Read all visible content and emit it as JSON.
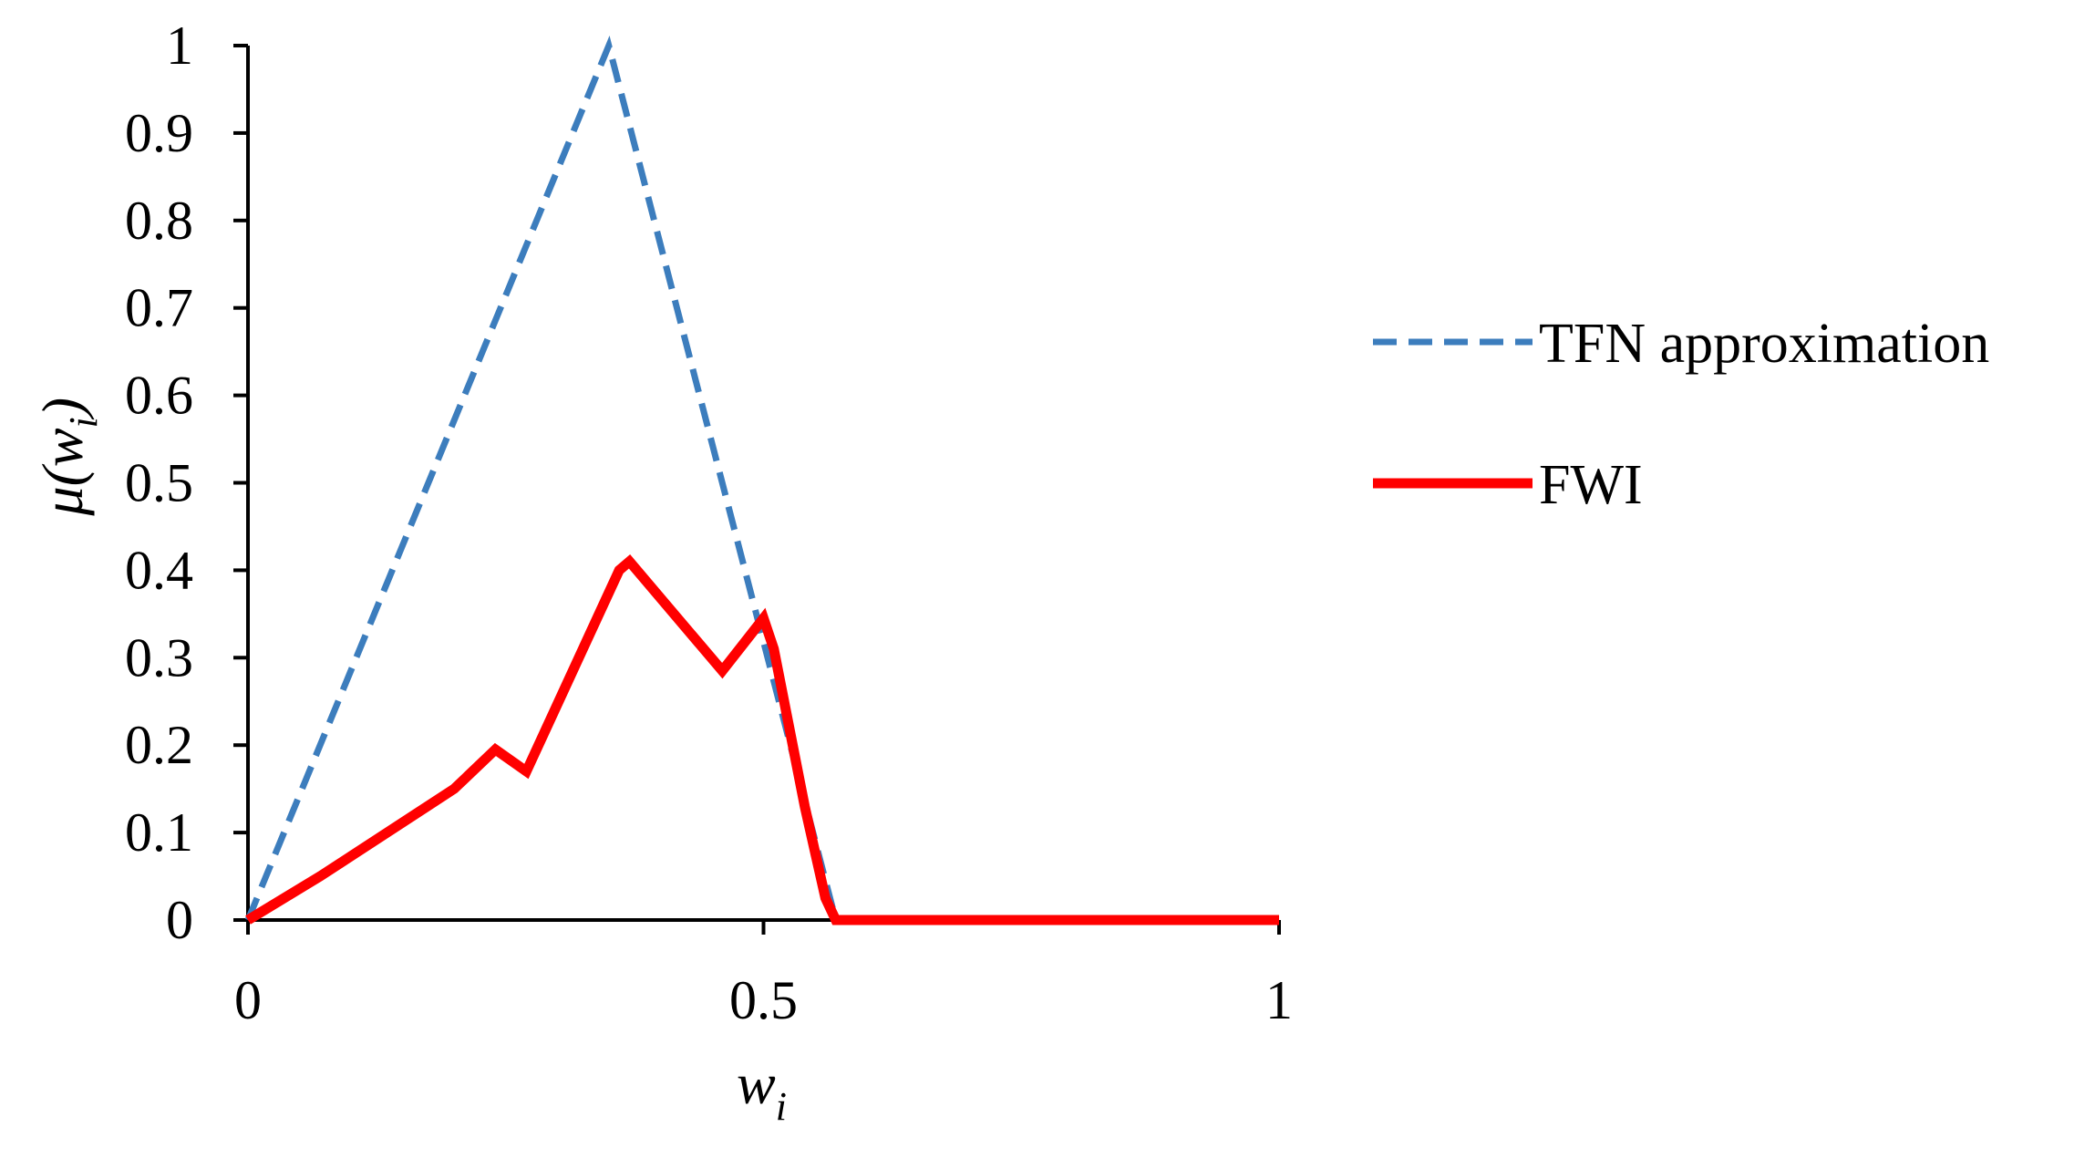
{
  "chart_data": {
    "type": "line",
    "title": "",
    "xlabel": {
      "main": "w",
      "sub": "i"
    },
    "ylabel": {
      "prefix": "μ(",
      "main": "w",
      "sub": "i",
      "suffix": ")"
    },
    "xlim": [
      0,
      1
    ],
    "ylim": [
      0,
      1
    ],
    "x_ticks": [
      0,
      0.5,
      1
    ],
    "x_tick_labels": [
      "0",
      "0.5",
      "1"
    ],
    "y_ticks": [
      0,
      0.1,
      0.2,
      0.3,
      0.4,
      0.5,
      0.6,
      0.7,
      0.8,
      0.9,
      1
    ],
    "y_tick_labels": [
      "0",
      "0.1",
      "0.2",
      "0.3",
      "0.4",
      "0.5",
      "0.6",
      "0.7",
      "0.8",
      "0.9",
      "1"
    ],
    "grid": false,
    "legend_position": "right",
    "series": [
      {
        "name": "TFN approximation",
        "color": "#3c7dbd",
        "style": "dashed",
        "points": [
          [
            0,
            0
          ],
          [
            0.35,
            1
          ],
          [
            0.57,
            0
          ],
          [
            1,
            0
          ]
        ]
      },
      {
        "name": "FWI",
        "color": "#ff0000",
        "style": "solid",
        "points": [
          [
            0,
            0
          ],
          [
            0.07,
            0.05
          ],
          [
            0.2,
            0.15
          ],
          [
            0.24,
            0.195
          ],
          [
            0.27,
            0.17
          ],
          [
            0.36,
            0.4
          ],
          [
            0.37,
            0.41
          ],
          [
            0.46,
            0.285
          ],
          [
            0.5,
            0.345
          ],
          [
            0.51,
            0.31
          ],
          [
            0.54,
            0.13
          ],
          [
            0.56,
            0.025
          ],
          [
            0.57,
            0
          ],
          [
            1,
            0
          ]
        ]
      }
    ]
  }
}
